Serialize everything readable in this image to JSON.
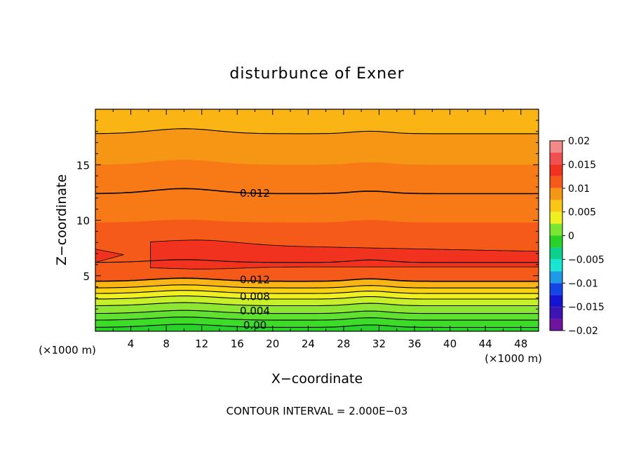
{
  "chart_data": {
    "type": "heatmap",
    "title": "disturbunce of Exner",
    "xlabel": "X−coordinate",
    "ylabel": "Z−coordinate",
    "x_unit": "(×1000 m)",
    "z_unit": "(×1000 m)",
    "xlim": [
      0,
      50
    ],
    "ylim": [
      0,
      20
    ],
    "x_ticks": [
      "4",
      "8",
      "12",
      "16",
      "20",
      "24",
      "28",
      "32",
      "36",
      "40",
      "44",
      "48"
    ],
    "y_ticks": [
      "5",
      "10",
      "15"
    ],
    "contour_interval_text": "CONTOUR INTERVAL = 2.000E−03",
    "contour_labels": [
      {
        "text": "0.012",
        "x": 18.0,
        "z": 12.4
      },
      {
        "text": "0.012",
        "x": 18.0,
        "z": 4.6
      },
      {
        "text": "0.008",
        "x": 18.0,
        "z": 3.1
      },
      {
        "text": "0.004",
        "x": 18.0,
        "z": 1.8
      },
      {
        "text": "0.00",
        "x": 18.0,
        "z": 0.5
      }
    ],
    "colorbar": {
      "ticks": [
        "0.02",
        "0.015",
        "0.01",
        "0.005",
        "0",
        "−0.005",
        "−0.01",
        "−0.015",
        "−0.02"
      ],
      "levels": [
        {
          "min": 0.0175,
          "max": 0.02,
          "color": "#f28a8a"
        },
        {
          "min": 0.015,
          "max": 0.0175,
          "color": "#f25050"
        },
        {
          "min": 0.0125,
          "max": 0.015,
          "color": "#f0321e"
        },
        {
          "min": 0.01,
          "max": 0.0125,
          "color": "#f65a18"
        },
        {
          "min": 0.0075,
          "max": 0.01,
          "color": "#f59615"
        },
        {
          "min": 0.005,
          "max": 0.0075,
          "color": "#fac814"
        },
        {
          "min": 0.0025,
          "max": 0.005,
          "color": "#f0f020"
        },
        {
          "min": 0.0,
          "max": 0.0025,
          "color": "#7ae632"
        },
        {
          "min": -0.0025,
          "max": 0.0,
          "color": "#28d228"
        },
        {
          "min": -0.005,
          "max": -0.0025,
          "color": "#0ad28c"
        },
        {
          "min": -0.0075,
          "max": -0.005,
          "color": "#19e6d2"
        },
        {
          "min": -0.01,
          "max": -0.0075,
          "color": "#1e9be6"
        },
        {
          "min": -0.0125,
          "max": -0.01,
          "color": "#1446e6"
        },
        {
          "min": -0.015,
          "max": -0.0125,
          "color": "#1414d2"
        },
        {
          "min": -0.0175,
          "max": -0.015,
          "color": "#3c14b4"
        },
        {
          "min": -0.02,
          "max": -0.0175,
          "color": "#6e14a0"
        }
      ]
    },
    "bands": [
      {
        "z0": 0.0,
        "z1": 0.35,
        "color": "#28d228"
      },
      {
        "z0": 0.35,
        "z1": 1.0,
        "color": "#3cdc28"
      },
      {
        "z0": 1.0,
        "z1": 1.6,
        "color": "#60e030"
      },
      {
        "z0": 1.6,
        "z1": 2.3,
        "color": "#8ce632"
      },
      {
        "z0": 2.3,
        "z1": 2.9,
        "color": "#c8f02a"
      },
      {
        "z0": 2.9,
        "z1": 3.4,
        "color": "#f0f020"
      },
      {
        "z0": 3.4,
        "z1": 3.9,
        "color": "#fad214"
      },
      {
        "z0": 3.9,
        "z1": 4.5,
        "color": "#fab414"
      },
      {
        "z0": 4.5,
        "z1": 9.8,
        "color": "#f65a18"
      },
      {
        "z0": 9.8,
        "z1": 15.0,
        "color": "#f77a16"
      },
      {
        "z0": 15.0,
        "z1": 17.8,
        "color": "#f59615"
      },
      {
        "z0": 17.8,
        "z1": 20.0,
        "color": "#fab414"
      }
    ],
    "core_region": {
      "z_bottom": 5.8,
      "z_top": 8.0,
      "color": "#f0321e"
    },
    "contour_lines_z": [
      0.35,
      1.0,
      1.6,
      2.3,
      2.9,
      3.4,
      3.9,
      4.5,
      6.2,
      12.4,
      17.8
    ]
  }
}
